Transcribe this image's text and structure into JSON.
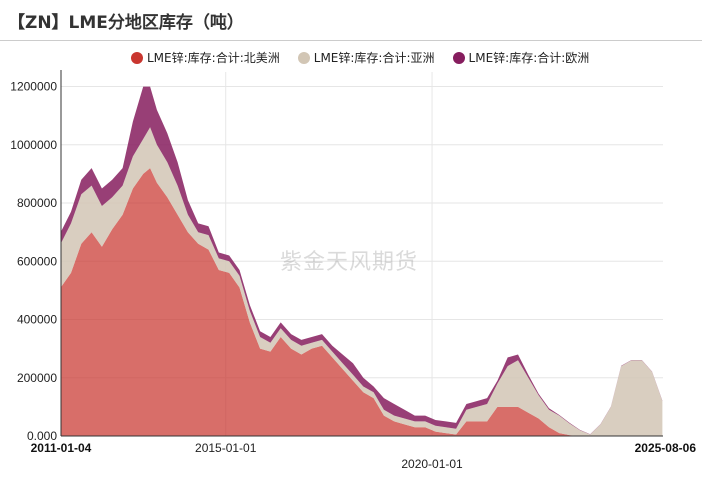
{
  "header": {
    "title": "【ZN】LME分地区库存（吨）"
  },
  "watermark": "紫金天风期货",
  "chart_data": {
    "type": "area",
    "stacked": true,
    "grid": true,
    "legend_position": "top",
    "ylim": [
      0,
      1250000
    ],
    "y_ticks": [
      0,
      200000,
      400000,
      600000,
      800000,
      1000000,
      1200000
    ],
    "y_tick_labels": [
      "0.000",
      "200000",
      "400000",
      "600000",
      "800000",
      "1000000",
      "1200000"
    ],
    "x_range": [
      "2011-01-04",
      "2025-08-06"
    ],
    "x_tick_labels": [
      {
        "date": "2011-01-04",
        "label": "2011-01-04",
        "bold": true,
        "row": 1
      },
      {
        "date": "2015-01-01",
        "label": "2015-01-01",
        "bold": false,
        "row": 1
      },
      {
        "date": "2020-01-01",
        "label": "2020-01-01",
        "bold": false,
        "row": 2
      },
      {
        "date": "2025-08-06",
        "label": "2025-08-06",
        "bold": true,
        "row": 1
      }
    ],
    "x": [
      "2011-01",
      "2011-04",
      "2011-07",
      "2011-10",
      "2012-01",
      "2012-04",
      "2012-07",
      "2012-10",
      "2013-01",
      "2013-03",
      "2013-05",
      "2013-08",
      "2013-11",
      "2014-02",
      "2014-05",
      "2014-08",
      "2014-11",
      "2015-02",
      "2015-05",
      "2015-08",
      "2015-11",
      "2016-02",
      "2016-05",
      "2016-08",
      "2016-11",
      "2017-02",
      "2017-05",
      "2017-08",
      "2017-11",
      "2018-02",
      "2018-05",
      "2018-08",
      "2018-11",
      "2019-02",
      "2019-05",
      "2019-08",
      "2019-11",
      "2020-02",
      "2020-05",
      "2020-08",
      "2020-11",
      "2021-02",
      "2021-05",
      "2021-08",
      "2021-11",
      "2022-02",
      "2022-05",
      "2022-08",
      "2022-11",
      "2023-02",
      "2023-05",
      "2023-08",
      "2023-11",
      "2024-02",
      "2024-05",
      "2024-08",
      "2024-11",
      "2025-02",
      "2025-05",
      "2025-08"
    ],
    "series": [
      {
        "name": "LME锌:库存:合计:北美洲",
        "color": "#c9362f",
        "values": [
          510000,
          560000,
          660000,
          700000,
          650000,
          710000,
          760000,
          850000,
          900000,
          920000,
          870000,
          820000,
          760000,
          700000,
          660000,
          640000,
          570000,
          560000,
          510000,
          390000,
          300000,
          290000,
          340000,
          300000,
          280000,
          300000,
          310000,
          270000,
          230000,
          190000,
          150000,
          130000,
          70000,
          50000,
          40000,
          30000,
          30000,
          15000,
          10000,
          5000,
          50000,
          50000,
          50000,
          100000,
          100000,
          100000,
          80000,
          60000,
          30000,
          10000,
          3000,
          0,
          0,
          0,
          0,
          0,
          0,
          0,
          0,
          0
        ]
      },
      {
        "name": "LME锌:库存:合计:亚洲",
        "color": "#d2c6b5",
        "values": [
          150000,
          170000,
          170000,
          160000,
          140000,
          110000,
          100000,
          110000,
          120000,
          140000,
          130000,
          120000,
          100000,
          60000,
          40000,
          50000,
          40000,
          40000,
          40000,
          40000,
          40000,
          30000,
          30000,
          30000,
          30000,
          20000,
          20000,
          20000,
          20000,
          20000,
          20000,
          20000,
          20000,
          20000,
          20000,
          20000,
          20000,
          20000,
          20000,
          20000,
          40000,
          50000,
          60000,
          80000,
          140000,
          160000,
          120000,
          80000,
          60000,
          60000,
          40000,
          20000,
          5000,
          40000,
          100000,
          240000,
          260000,
          260000,
          220000,
          120000
        ]
      },
      {
        "name": "LME锌:库存:合计:欧洲",
        "color": "#861d5e",
        "values": [
          40000,
          40000,
          50000,
          60000,
          60000,
          60000,
          60000,
          120000,
          180000,
          140000,
          120000,
          100000,
          80000,
          50000,
          30000,
          30000,
          20000,
          20000,
          20000,
          20000,
          20000,
          20000,
          20000,
          20000,
          20000,
          20000,
          20000,
          20000,
          30000,
          40000,
          30000,
          20000,
          40000,
          40000,
          30000,
          20000,
          20000,
          20000,
          20000,
          20000,
          20000,
          20000,
          20000,
          10000,
          30000,
          20000,
          10000,
          5000,
          5000,
          2000,
          2000,
          1000,
          1000,
          1000,
          1000,
          1000,
          1000,
          1000,
          1000,
          1000
        ]
      }
    ]
  }
}
